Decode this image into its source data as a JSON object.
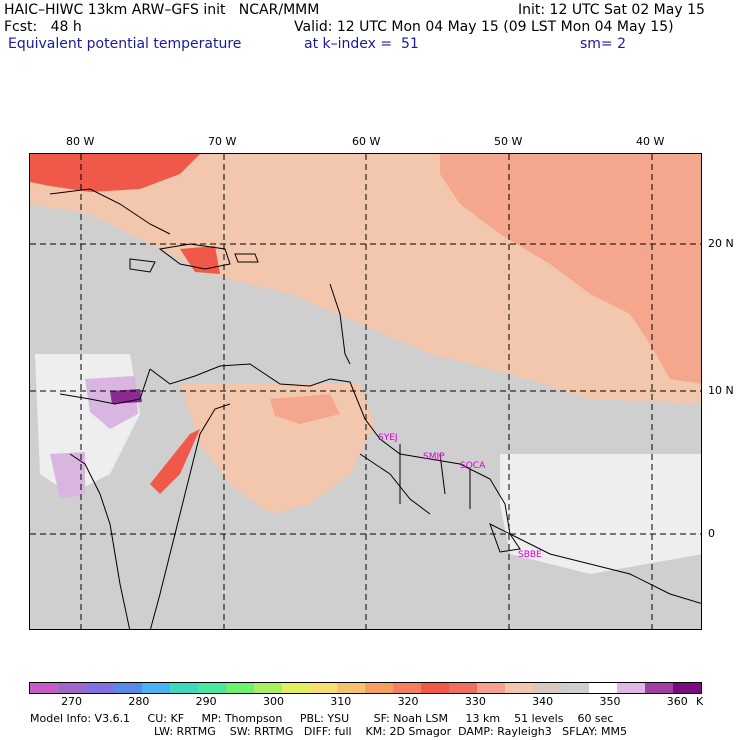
{
  "header": {
    "line1_left": "HAIC–HIWC 13km ARW–GFS init   NCAR/MMM",
    "line1_right": "Init: 12 UTC Sat 02 May 15",
    "line2_left": "Fcst:   48 h",
    "line2_right": "Valid: 12 UTC Mon 04 May 15 (09 LST Mon 04 May 15)",
    "field": "Equivalent potential temperature",
    "level": "at k–index =  51",
    "smooth": "sm= 2"
  },
  "map": {
    "lon_labels": [
      "80 W",
      "70 W",
      "60 W",
      "50 W",
      "40 W"
    ],
    "lat_labels": [
      "20 N",
      "10 N",
      "0"
    ],
    "sites": [
      "SYEJ",
      "SMJP",
      "SOCA",
      "SBBE"
    ],
    "colors": {
      "background": "#cfcfcf",
      "warm_peach": "#f2c7ad",
      "salmon": "#f5a78d",
      "red": "#f0584a",
      "white": "#eeeeee",
      "lavender": "#d9b6e0",
      "purple": "#8b2a92"
    }
  },
  "colorbar": {
    "colors": [
      "#c75cc9",
      "#a067c9",
      "#8070e0",
      "#5a8ae6",
      "#47b3f0",
      "#3ed9c0",
      "#48e8a0",
      "#6ef070",
      "#a8f060",
      "#e0f060",
      "#f5e070",
      "#f5c070",
      "#f5a060",
      "#f58060",
      "#f05848",
      "#f07060",
      "#f5a090",
      "#f2c7ad",
      "#d8c8c0",
      "#cfcfcf",
      "#ffffff",
      "#e0b8e6",
      "#a040a0",
      "#7a0a80"
    ],
    "labels": [
      "270",
      "280",
      "290",
      "300",
      "310",
      "320",
      "330",
      "340",
      "350",
      "360",
      "K"
    ]
  },
  "footer": {
    "line1": "Model Info: V3.6.1     CU: KF     MP: Thompson     PBL: YSU       SF: Noah LSM     13 km    51 levels    60 sec",
    "line2": "LW: RRTMG    SW: RRTMG   DIFF: full    KM: 2D Smagor  DAMP: Rayleigh3   SFLAY: MM5"
  }
}
